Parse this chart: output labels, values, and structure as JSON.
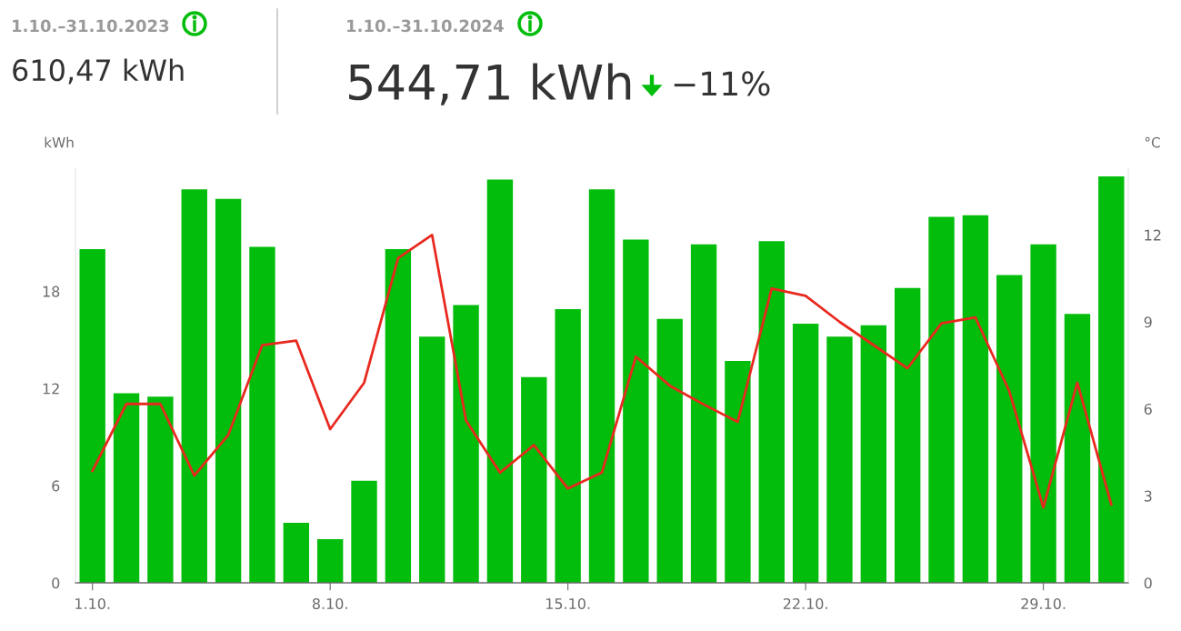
{
  "chart_data": {
    "type": "bar",
    "annotations": [
      "1.10.–31.10.2023",
      "610,47 kWh",
      "1.10.–31.10.2024",
      "544,71 kWh",
      "−11%"
    ],
    "ylabel": "kWh",
    "y2label": "°C",
    "categories": [
      "1.10.",
      null,
      null,
      null,
      null,
      null,
      null,
      "8.10.",
      null,
      null,
      null,
      null,
      null,
      null,
      "15.10.",
      null,
      null,
      null,
      null,
      null,
      null,
      "22.10.",
      null,
      null,
      null,
      null,
      null,
      null,
      "29.10.",
      null,
      null
    ],
    "series": [
      {
        "color": "#02bd0b",
        "values": [
          20.6,
          11.7,
          11.5,
          24.3,
          23.7,
          20.75,
          3.7,
          2.7,
          6.3,
          20.6,
          15.2,
          17.15,
          24.9,
          12.7,
          16.9,
          24.3,
          21.2,
          16.3,
          20.9,
          13.7,
          21.1,
          16.0,
          15.2,
          15.9,
          18.2,
          22.6,
          22.7,
          19.0,
          20.9,
          16.6,
          25.1
        ]
      },
      {
        "type": "line",
        "axis": "y2",
        "color": "#e8291f",
        "values": [
          3.86,
          6.17,
          6.17,
          3.7,
          5.1,
          8.2,
          8.35,
          5.3,
          6.9,
          11.2,
          12.0,
          5.6,
          3.8,
          4.75,
          3.25,
          3.8,
          7.8,
          6.8,
          6.15,
          5.55,
          10.15,
          9.9,
          9.0,
          8.2,
          7.4,
          8.95,
          9.15,
          6.6,
          2.6,
          6.9,
          2.7
        ]
      }
    ],
    "ylim": [
      0,
      25.6
    ],
    "yticks": [
      0,
      6,
      12,
      18
    ],
    "y2lim": [
      0,
      14.3
    ],
    "y2ticks": [
      0,
      3,
      6,
      9,
      12
    ],
    "grid": false,
    "legend": false,
    "marker": "none",
    "line_style": "solid"
  }
}
